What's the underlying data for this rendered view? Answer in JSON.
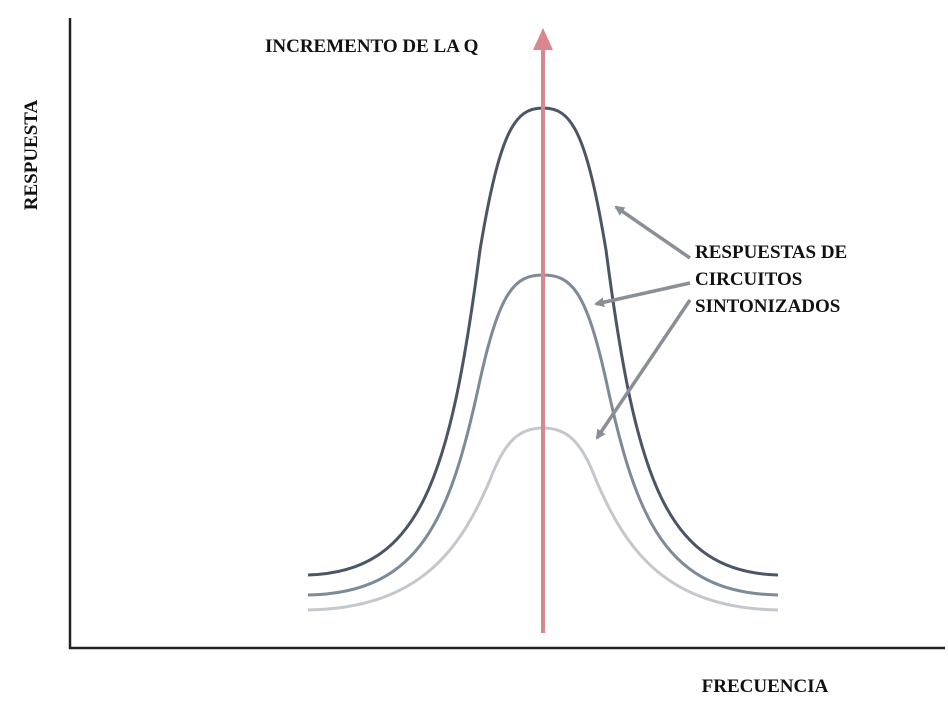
{
  "axes": {
    "y_label": "RESPUESTA",
    "x_label": "FRECUENCIA"
  },
  "arrow_label": "INCREMENTO DE LA Q",
  "annotation": {
    "lines": [
      "RESPUESTAS DE",
      "CIRCUITOS",
      "SINTONIZADOS"
    ]
  }
}
